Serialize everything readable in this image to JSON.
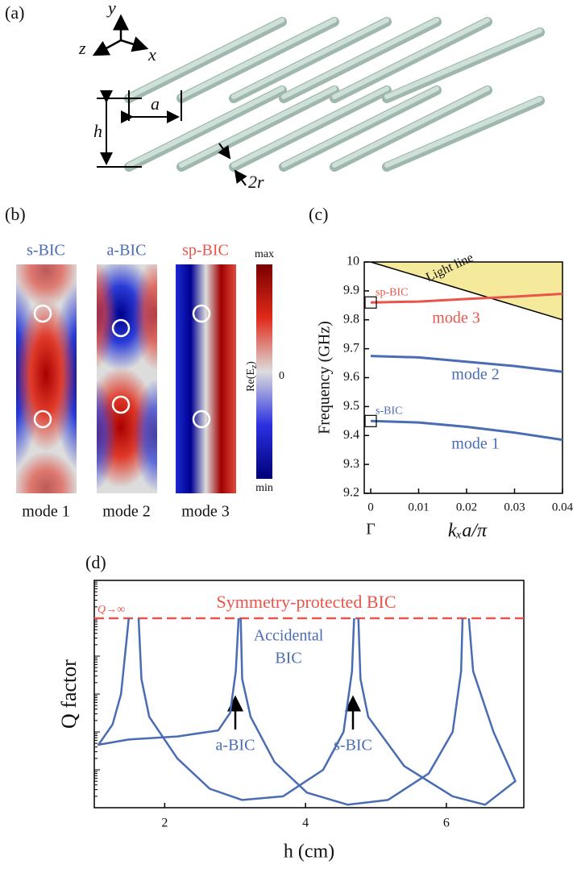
{
  "panel_labels": [
    "(a)",
    "(b)",
    "(c)",
    "(d)"
  ],
  "diagram": {
    "axis_y": "y",
    "axis_z": "z",
    "axis_x": "x",
    "dim_a": "a",
    "dim_h": "h",
    "dim_2r": "2r"
  },
  "field_maps": {
    "titles": [
      "s-BIC",
      "a-BIC",
      "sp-BIC"
    ],
    "modes": [
      "mode 1",
      "mode 2",
      "mode 3"
    ],
    "colorbar_max": "max",
    "colorbar_min": "min",
    "colorbar_zero": "0",
    "colorbar_label": {
      "pre": "Re(E",
      "sub": "z",
      "post": ")"
    }
  },
  "chart_data": [
    {
      "type": "line",
      "ylabel": "Frequency (GHz)",
      "xlabel": "kₓa/π",
      "x_origin_label": "Γ",
      "x": [
        0,
        0.01,
        0.02,
        0.03,
        0.04
      ],
      "xlim": [
        0,
        0.04
      ],
      "xticks": [
        0,
        0.01,
        0.02,
        0.03,
        0.04
      ],
      "ylim": [
        9.2,
        10
      ],
      "yticks": [
        9.2,
        9.3,
        9.4,
        9.5,
        9.6,
        9.7,
        9.8,
        9.9,
        10
      ],
      "light_line": {
        "name": "Light line",
        "color": "#000000",
        "fill": "#f5ea9c",
        "values": [
          10,
          9.95,
          9.9,
          9.85,
          9.8
        ]
      },
      "series": [
        {
          "name": "mode 1",
          "color": "#4a6cb3",
          "values": [
            9.45,
            9.445,
            9.43,
            9.41,
            9.385
          ]
        },
        {
          "name": "mode 2",
          "color": "#4a6cb3",
          "values": [
            9.675,
            9.67,
            9.655,
            9.64,
            9.62
          ]
        },
        {
          "name": "mode 3",
          "color": "#e9544b",
          "values": [
            9.86,
            9.863,
            9.872,
            9.88,
            9.89
          ]
        }
      ],
      "markers": [
        {
          "label": "sp-BIC",
          "color": "#e9544b",
          "value": 9.86
        },
        {
          "label": "s-BIC",
          "color": "#4a6cb3",
          "value": 9.45
        }
      ]
    },
    {
      "type": "line",
      "ylabel": "Q factor",
      "xlabel": "h (cm)",
      "log_y": true,
      "xlim": [
        1,
        7.1
      ],
      "xticks": [
        2,
        4,
        6
      ],
      "ylim": [
        100,
        100000000
      ],
      "infinity_line": {
        "label": "Q→∞",
        "name": "Symmetry-protected BIC",
        "color": "#e9544b",
        "value": 10000000
      },
      "annotations": [
        "Accidental",
        "BIC",
        "a-BIC",
        "s-BIC"
      ],
      "series": [
        {
          "color": "#4a6cb3",
          "x": [
            1.49,
            1.38,
            1.26,
            1.06,
            1.49,
            2.18,
            2.76,
            2.93,
            3.01,
            3.05
          ],
          "values": [
            10000000,
            100000,
            15800,
            4600,
            6300,
            7600,
            11000,
            32000,
            400000,
            10000000
          ]
        },
        {
          "color": "#4a6cb3",
          "x": [
            1.63,
            1.67,
            1.78,
            2.18,
            2.64,
            3.1,
            3.68,
            4.25,
            4.54,
            4.66,
            4.69
          ],
          "values": [
            10000000,
            250000,
            25000,
            2000,
            316,
            160,
            200,
            1000,
            10000,
            400000,
            10000000
          ]
        },
        {
          "color": "#4a6cb3",
          "x": [
            3.08,
            3.1,
            3.22,
            3.56,
            4.02,
            4.6,
            5.17,
            5.75,
            6.09,
            6.21,
            6.23
          ],
          "values": [
            10000000,
            250000,
            25000,
            1600,
            250,
            120,
            160,
            800,
            10000,
            400000,
            10000000
          ]
        },
        {
          "color": "#4a6cb3",
          "x": [
            4.75,
            4.78,
            4.89,
            5.4,
            6.09,
            6.55,
            6.98,
            6.67,
            6.38,
            6.32
          ],
          "values": [
            10000000,
            250000,
            25000,
            1260,
            200,
            120,
            500,
            10000,
            400000,
            10000000
          ]
        }
      ]
    }
  ]
}
